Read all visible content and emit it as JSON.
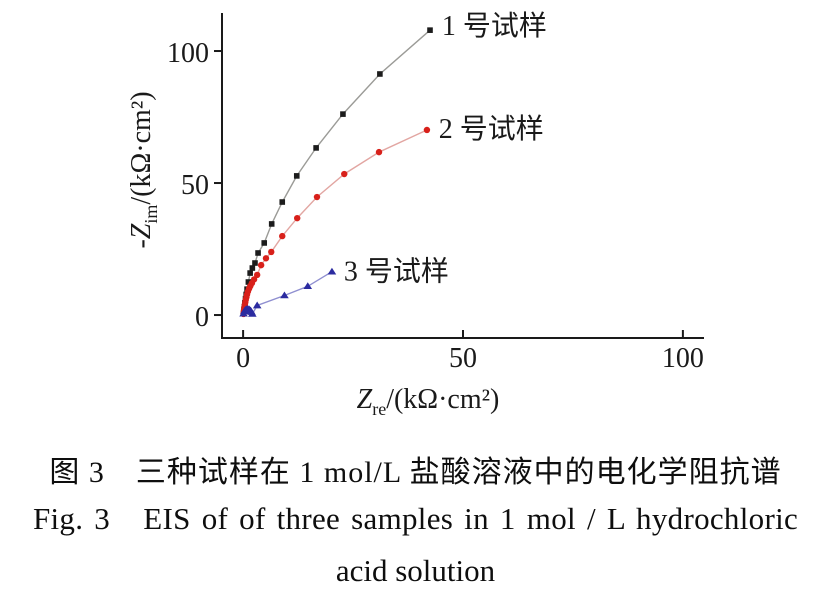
{
  "figure": {
    "caption_zh": "图 3　三种试样在 1 mol/L 盐酸溶液中的电化学阻抗谱",
    "caption_en_line1": "Fig. 3   EIS of of three samples in 1 mol / L hydrochloric",
    "caption_en_line2": "acid solution"
  },
  "chart_data": {
    "type": "scatter",
    "title": "",
    "grid": false,
    "legend_position": "inline-at-series-end",
    "x_axis": {
      "variable": "Z",
      "subscript": "re",
      "unit": "/(kΩ·cm²)",
      "ticks": [
        0,
        50,
        100
      ],
      "range": [
        -4.8,
        104.8
      ]
    },
    "y_axis": {
      "variable": "-Z",
      "subscript": "im",
      "unit": "/(kΩ·cm²)",
      "ticks": [
        0,
        50,
        100
      ],
      "range": [
        -8.7,
        114.4
      ]
    },
    "series": [
      {
        "name": "1 号试样",
        "marker": "square",
        "marker_color": "#1c1c1c",
        "line_color": "#9b9b97",
        "label_pos": [
          45.2,
          109.5
        ],
        "points": [
          [
            0.1,
            0.6
          ],
          [
            0.15,
            1.3
          ],
          [
            0.2,
            2.2
          ],
          [
            0.3,
            3.2
          ],
          [
            0.4,
            4.6
          ],
          [
            0.55,
            6.2
          ],
          [
            0.7,
            7.8
          ],
          [
            0.9,
            9.8
          ],
          [
            1.2,
            12.5
          ],
          [
            1.6,
            15.9
          ],
          [
            2.1,
            17.8
          ],
          [
            2.7,
            19.7
          ],
          [
            3.4,
            23.5
          ],
          [
            4.8,
            27.3
          ],
          [
            6.5,
            34.5
          ],
          [
            8.9,
            42.8
          ],
          [
            12.2,
            52.7
          ],
          [
            16.6,
            63.3
          ],
          [
            22.7,
            76.1
          ],
          [
            31.1,
            91.3
          ],
          [
            42.5,
            107.9
          ]
        ]
      },
      {
        "name": "2 号试样",
        "marker": "circle",
        "marker_color": "#d8201a",
        "line_color": "#e2a6a2",
        "label_pos": [
          44.5,
          70.5
        ],
        "points": [
          [
            0.1,
            0.4
          ],
          [
            0.15,
            1.0
          ],
          [
            0.2,
            1.8
          ],
          [
            0.3,
            2.8
          ],
          [
            0.4,
            3.8
          ],
          [
            0.5,
            4.8
          ],
          [
            0.6,
            5.8
          ],
          [
            0.75,
            6.8
          ],
          [
            0.9,
            7.8
          ],
          [
            1.1,
            8.9
          ],
          [
            1.35,
            10.0
          ],
          [
            1.65,
            11.0
          ],
          [
            2.0,
            12.1
          ],
          [
            2.5,
            13.5
          ],
          [
            3.2,
            15.2
          ],
          [
            4.1,
            18.9
          ],
          [
            5.2,
            21.5
          ],
          [
            6.4,
            23.9
          ],
          [
            8.9,
            29.9
          ],
          [
            12.3,
            36.7
          ],
          [
            16.8,
            44.7
          ],
          [
            23.0,
            53.4
          ],
          [
            30.9,
            61.7
          ],
          [
            41.8,
            70.1
          ]
        ]
      },
      {
        "name": "3 号试样",
        "marker": "triangle",
        "marker_color": "#2b2ba0",
        "line_color": "#8f8fd0",
        "label_pos": [
          22.9,
          16.5
        ],
        "points": [
          [
            0.1,
            0.5
          ],
          [
            0.3,
            1.4
          ],
          [
            0.5,
            1.9
          ],
          [
            0.8,
            2.2
          ],
          [
            1.1,
            2.3
          ],
          [
            1.4,
            2.1
          ],
          [
            1.7,
            1.7
          ],
          [
            1.9,
            1.1
          ],
          [
            2.1,
            0.4
          ],
          [
            3.2,
            3.6
          ],
          [
            9.4,
            7.4
          ],
          [
            14.7,
            10.9
          ],
          [
            20.2,
            16.4
          ]
        ]
      }
    ]
  }
}
